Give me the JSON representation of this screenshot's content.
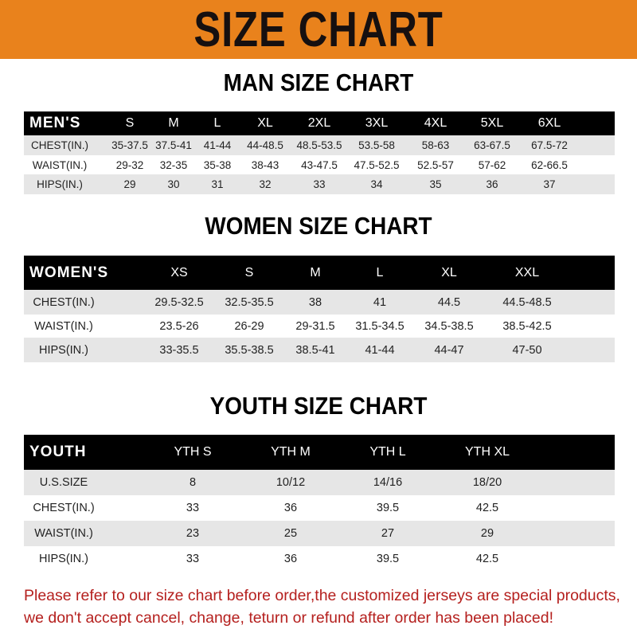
{
  "title": "SIZE CHART",
  "colors": {
    "banner": "#e9821c",
    "header_row": "#000000",
    "stripe": "#e6e6e6",
    "notice": "#b5201e"
  },
  "men": {
    "heading": "MAN SIZE CHART",
    "columns": [
      "MEN'S",
      "S",
      "M",
      "L",
      "XL",
      "2XL",
      "3XL",
      "4XL",
      "5XL",
      "6XL"
    ],
    "rows": [
      [
        "CHEST(IN.)",
        "35-37.5",
        "37.5-41",
        "41-44",
        "44-48.5",
        "48.5-53.5",
        "53.5-58",
        "58-63",
        "63-67.5",
        "67.5-72"
      ],
      [
        "WAIST(IN.)",
        "29-32",
        "32-35",
        "35-38",
        "38-43",
        "43-47.5",
        "47.5-52.5",
        "52.5-57",
        "57-62",
        "62-66.5"
      ],
      [
        "HIPS(IN.)",
        "29",
        "30",
        "31",
        "32",
        "33",
        "34",
        "35",
        "36",
        "37"
      ]
    ]
  },
  "women": {
    "heading": "WOMEN SIZE CHART",
    "columns": [
      "WOMEN'S",
      "XS",
      "S",
      "M",
      "L",
      "XL",
      "XXL"
    ],
    "rows": [
      [
        "CHEST(IN.)",
        "29.5-32.5",
        "32.5-35.5",
        "38",
        "41",
        "44.5",
        "44.5-48.5"
      ],
      [
        "WAIST(IN.)",
        "23.5-26",
        "26-29",
        "29-31.5",
        "31.5-34.5",
        "34.5-38.5",
        "38.5-42.5"
      ],
      [
        "HIPS(IN.)",
        "33-35.5",
        "35.5-38.5",
        "38.5-41",
        "41-44",
        "44-47",
        "47-50"
      ]
    ]
  },
  "youth": {
    "heading": "YOUTH SIZE CHART",
    "columns": [
      "YOUTH",
      "YTH S",
      "YTH M",
      "YTH L",
      "YTH XL"
    ],
    "rows": [
      [
        "U.S.SIZE",
        "8",
        "10/12",
        "14/16",
        "18/20"
      ],
      [
        "CHEST(IN.)",
        "33",
        "36",
        "39.5",
        "42.5"
      ],
      [
        "WAIST(IN.)",
        "23",
        "25",
        "27",
        "29"
      ],
      [
        "HIPS(IN.)",
        "33",
        "36",
        "39.5",
        "42.5"
      ]
    ]
  },
  "notice": {
    "line1": "Please refer to our size chart before order,the customized jerseys are special products,",
    "line2": "we don't accept cancel, change, teturn or refund after order has been placed!"
  }
}
